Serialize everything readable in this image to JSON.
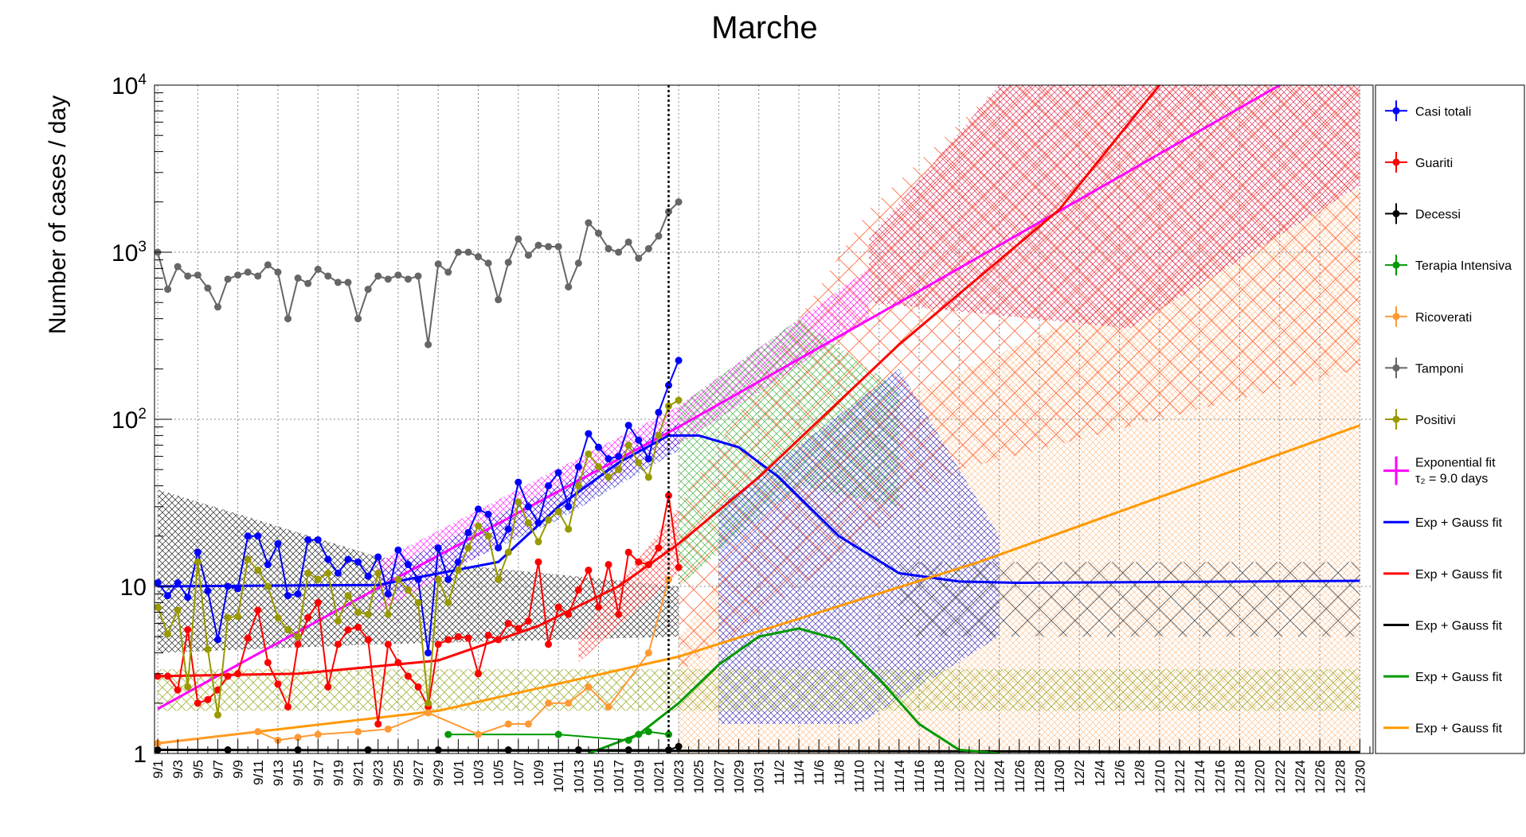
{
  "chart_data": {
    "type": "line",
    "title": "Marche",
    "ylabel": "Number of cases / day",
    "xlabel": "",
    "y_scale": "log",
    "ylim": [
      1,
      10000
    ],
    "y_ticks": [
      {
        "value": 1,
        "base": "1",
        "exp": ""
      },
      {
        "value": 10,
        "base": "10",
        "exp": ""
      },
      {
        "value": 100,
        "base": "10",
        "exp": "2"
      },
      {
        "value": 1000,
        "base": "10",
        "exp": "3"
      },
      {
        "value": 10000,
        "base": "10",
        "exp": "4"
      }
    ],
    "x_tick_labels": [
      "9/1",
      "9/3",
      "9/5",
      "9/7",
      "9/9",
      "9/11",
      "9/13",
      "9/15",
      "9/17",
      "9/19",
      "9/21",
      "9/23",
      "9/25",
      "9/27",
      "9/29",
      "10/1",
      "10/3",
      "10/5",
      "10/7",
      "10/9",
      "10/11",
      "10/13",
      "10/15",
      "10/17",
      "10/19",
      "10/21",
      "10/23",
      "10/25",
      "10/27",
      "10/29",
      "10/31",
      "11/2",
      "11/4",
      "11/6",
      "11/8",
      "11/10",
      "11/12",
      "11/14",
      "11/16",
      "11/18",
      "11/20",
      "11/22",
      "11/24",
      "11/26",
      "11/28",
      "11/30",
      "12/2",
      "12/4",
      "12/6",
      "12/8",
      "12/10",
      "12/12",
      "12/14",
      "12/16",
      "12/18",
      "12/20",
      "12/22",
      "12/24",
      "12/26",
      "12/28",
      "12/30"
    ],
    "grid": true,
    "legend_position": "right",
    "vertical_marker_label": "10/22",
    "series": [
      {
        "name": "Casi totali",
        "kind": "points",
        "color": "#0000ff",
        "x": [
          "9/1",
          "9/2",
          "9/3",
          "9/4",
          "9/5",
          "9/6",
          "9/7",
          "9/8",
          "9/9",
          "9/10",
          "9/11",
          "9/12",
          "9/13",
          "9/14",
          "9/15",
          "9/16",
          "9/17",
          "9/18",
          "9/19",
          "9/20",
          "9/21",
          "9/22",
          "9/23",
          "9/24",
          "9/25",
          "9/26",
          "9/27",
          "9/28",
          "9/29",
          "9/30",
          "10/1",
          "10/2",
          "10/3",
          "10/4",
          "10/5",
          "10/6",
          "10/7",
          "10/8",
          "10/9",
          "10/10",
          "10/11",
          "10/12",
          "10/13",
          "10/14",
          "10/15",
          "10/16",
          "10/17",
          "10/18",
          "10/19",
          "10/20",
          "10/21",
          "10/22",
          "10/23"
        ],
        "y": [
          10.5,
          8.8,
          10.5,
          8.6,
          16,
          9.4,
          4.8,
          10,
          9.7,
          20,
          20,
          13.5,
          18,
          8.8,
          9,
          19,
          19,
          14.5,
          12,
          14.5,
          14,
          11.5,
          15,
          9,
          16.5,
          13.5,
          11,
          4,
          17,
          11,
          14,
          21,
          29,
          27,
          17,
          22,
          42,
          30,
          24,
          40,
          48,
          30,
          52,
          82,
          68,
          58,
          60,
          92,
          75,
          58,
          110,
          160,
          225
        ]
      },
      {
        "name": "Guariti",
        "kind": "points",
        "color": "#ff0000",
        "x": [
          "9/1",
          "9/2",
          "9/3",
          "9/4",
          "9/5",
          "9/6",
          "9/7",
          "9/8",
          "9/9",
          "9/10",
          "9/11",
          "9/12",
          "9/13",
          "9/14",
          "9/15",
          "9/16",
          "9/17",
          "9/18",
          "9/19",
          "9/20",
          "9/21",
          "9/22",
          "9/23",
          "9/24",
          "9/25",
          "9/26",
          "9/27",
          "9/28",
          "9/29",
          "9/30",
          "10/1",
          "10/2",
          "10/3",
          "10/4",
          "10/5",
          "10/6",
          "10/7",
          "10/8",
          "10/9",
          "10/10",
          "10/11",
          "10/12",
          "10/13",
          "10/14",
          "10/15",
          "10/16",
          "10/17",
          "10/18",
          "10/19",
          "10/20",
          "10/21",
          "10/22",
          "10/23"
        ],
        "y": [
          2.9,
          2.9,
          2.4,
          5.5,
          2,
          2.1,
          2.4,
          2.9,
          3,
          4.9,
          7.2,
          3.5,
          2.6,
          1.9,
          4.5,
          6.5,
          8,
          2.5,
          4.5,
          5.5,
          5.7,
          4.8,
          1.5,
          4.5,
          3.5,
          2.9,
          2.5,
          1.9,
          4.5,
          4.8,
          5,
          4.9,
          3,
          5.1,
          4.8,
          6,
          5.6,
          6.2,
          14,
          4.5,
          7.5,
          6.8,
          9.5,
          12.5,
          7.5,
          13.5,
          6.8,
          16,
          14,
          13.5,
          17,
          35,
          13
        ]
      },
      {
        "name": "Decessi",
        "kind": "points",
        "color": "#000000",
        "x": [
          "9/1",
          "9/8",
          "9/15",
          "9/22",
          "9/29",
          "10/6",
          "10/13",
          "10/18",
          "10/22",
          "10/23"
        ],
        "y": [
          1.05,
          1.05,
          1.05,
          1.05,
          1.05,
          1.05,
          1.05,
          1.05,
          1.05,
          1.1
        ]
      },
      {
        "name": "Terapia Intensiva",
        "kind": "points",
        "color": "#009900",
        "x": [
          "9/30",
          "10/11",
          "10/18",
          "10/19",
          "10/20",
          "10/22"
        ],
        "y": [
          1.3,
          1.3,
          1.2,
          1.3,
          1.35,
          1.3
        ]
      },
      {
        "name": "Ricoverati",
        "kind": "points",
        "color": "#ff9933",
        "x": [
          "9/1",
          "9/11",
          "9/13",
          "9/15",
          "9/17",
          "9/21",
          "9/24",
          "9/28",
          "10/3",
          "10/6",
          "10/8",
          "10/10",
          "10/12",
          "10/14",
          "10/16",
          "10/20",
          "10/22"
        ],
        "y": [
          1.15,
          1.35,
          1.2,
          1.25,
          1.3,
          1.35,
          1.4,
          1.75,
          1.3,
          1.5,
          1.5,
          2,
          2,
          2.5,
          1.9,
          4,
          11
        ]
      },
      {
        "name": "Tamponi",
        "kind": "points",
        "color": "#666666",
        "x": [
          "9/1",
          "9/2",
          "9/3",
          "9/4",
          "9/5",
          "9/6",
          "9/7",
          "9/8",
          "9/9",
          "9/10",
          "9/11",
          "9/12",
          "9/13",
          "9/14",
          "9/15",
          "9/16",
          "9/17",
          "9/18",
          "9/19",
          "9/20",
          "9/21",
          "9/22",
          "9/23",
          "9/24",
          "9/25",
          "9/26",
          "9/27",
          "9/28",
          "9/29",
          "9/30",
          "10/1",
          "10/2",
          "10/3",
          "10/4",
          "10/5",
          "10/6",
          "10/7",
          "10/8",
          "10/9",
          "10/10",
          "10/11",
          "10/12",
          "10/13",
          "10/14",
          "10/15",
          "10/16",
          "10/17",
          "10/18",
          "10/19",
          "10/20",
          "10/21",
          "10/22",
          "10/23"
        ],
        "y": [
          1000,
          600,
          820,
          720,
          730,
          610,
          470,
          690,
          730,
          760,
          720,
          840,
          760,
          400,
          700,
          650,
          790,
          720,
          660,
          660,
          400,
          600,
          720,
          690,
          730,
          690,
          720,
          280,
          850,
          760,
          1000,
          1000,
          940,
          860,
          520,
          870,
          1200,
          960,
          1100,
          1080,
          1080,
          620,
          860,
          1500,
          1300,
          1050,
          1000,
          1150,
          920,
          1050,
          1250,
          1750,
          2000
        ]
      },
      {
        "name": "Positivi",
        "kind": "points",
        "color": "#999900",
        "x": [
          "9/1",
          "9/2",
          "9/3",
          "9/4",
          "9/5",
          "9/6",
          "9/7",
          "9/8",
          "9/9",
          "9/10",
          "9/11",
          "9/12",
          "9/13",
          "9/14",
          "9/15",
          "9/16",
          "9/17",
          "9/18",
          "9/19",
          "9/20",
          "9/21",
          "9/22",
          "9/23",
          "9/24",
          "9/25",
          "9/26",
          "9/27",
          "9/28",
          "9/29",
          "9/30",
          "10/1",
          "10/2",
          "10/3",
          "10/4",
          "10/5",
          "10/6",
          "10/7",
          "10/8",
          "10/9",
          "10/10",
          "10/11",
          "10/12",
          "10/13",
          "10/14",
          "10/15",
          "10/16",
          "10/17",
          "10/18",
          "10/19",
          "10/20",
          "10/21",
          "10/22",
          "10/23"
        ],
        "y": [
          7.5,
          5.2,
          7.2,
          2.5,
          14,
          4.2,
          1.7,
          6.5,
          6.6,
          14.5,
          12.5,
          10,
          6.5,
          5.5,
          5,
          12,
          11,
          12,
          6.2,
          8.8,
          7,
          6.8,
          12,
          6.8,
          11,
          9.5,
          8,
          2,
          11,
          8,
          12.5,
          17,
          23,
          20,
          11,
          16,
          32,
          24,
          18.5,
          25,
          28,
          22,
          40,
          62,
          52,
          45,
          50,
          70,
          55,
          45,
          80,
          120,
          130
        ]
      }
    ],
    "fits": [
      {
        "name": "Exponential fit",
        "label_sub": "τ₂ = 9.0 days",
        "color": "#ff00ff",
        "x": [
          "9/1",
          "9/23",
          "10/23",
          "11/14",
          "12/22"
        ],
        "y": [
          1.85,
          9.8,
          90,
          500,
          10000
        ]
      },
      {
        "name": "Exp + Gauss fit",
        "color": "#0000ff",
        "x": [
          "9/1",
          "9/23",
          "10/5",
          "10/11",
          "10/17",
          "10/22",
          "10/25",
          "10/29",
          "11/2",
          "11/8",
          "11/14",
          "11/20",
          "11/26",
          "12/30"
        ],
        "y": [
          10,
          10.2,
          14,
          30,
          55,
          80,
          80,
          68,
          45,
          20,
          12,
          10.7,
          10.5,
          10.8
        ]
      },
      {
        "name": "Exp + Gauss fit",
        "color": "#ff0000",
        "x": [
          "9/1",
          "9/15",
          "9/29",
          "10/9",
          "10/17",
          "10/23",
          "10/31",
          "11/14",
          "11/30",
          "12/10"
        ],
        "y": [
          2.9,
          3,
          3.6,
          5.8,
          10,
          18,
          45,
          280,
          1800,
          10000
        ]
      },
      {
        "name": "Exp + Gauss fit",
        "color": "#000000",
        "x": [
          "9/1",
          "12/30"
        ],
        "y": [
          1.05,
          1.02
        ]
      },
      {
        "name": "Exp + Gauss fit",
        "color": "#009900",
        "x": [
          "10/14",
          "10/19",
          "10/23",
          "10/27",
          "10/31",
          "11/4",
          "11/8",
          "11/12",
          "11/16",
          "11/20",
          "11/24"
        ],
        "y": [
          1,
          1.3,
          2,
          3.4,
          5,
          5.6,
          4.8,
          2.8,
          1.5,
          1.05,
          1
        ]
      },
      {
        "name": "Exp + Gauss fit",
        "color": "#ff9900",
        "x": [
          "9/1",
          "9/29",
          "10/23",
          "11/22",
          "12/30"
        ],
        "y": [
          1.15,
          1.8,
          3.8,
          14,
          92
        ]
      }
    ]
  },
  "legend": [
    {
      "label": "Casi totali",
      "color": "#0000ff",
      "style": "point"
    },
    {
      "label": "Guariti",
      "color": "#ff0000",
      "style": "point"
    },
    {
      "label": "Decessi",
      "color": "#000000",
      "style": "point"
    },
    {
      "label": "Terapia Intensiva",
      "color": "#009900",
      "style": "point"
    },
    {
      "label": "Ricoverati",
      "color": "#ff9933",
      "style": "point"
    },
    {
      "label": "Tamponi",
      "color": "#666666",
      "style": "point"
    },
    {
      "label": "Positivi",
      "color": "#999900",
      "style": "point"
    },
    {
      "label": "Exponential fit",
      "label2": "τ₂ = 9.0 days",
      "color": "#ff00ff",
      "style": "cross"
    },
    {
      "label": "Exp + Gauss fit",
      "color": "#0000ff",
      "style": "line"
    },
    {
      "label": "Exp + Gauss fit",
      "color": "#ff0000",
      "style": "line"
    },
    {
      "label": "Exp + Gauss fit",
      "color": "#000000",
      "style": "line"
    },
    {
      "label": "Exp + Gauss fit",
      "color": "#009900",
      "style": "line"
    },
    {
      "label": "Exp + Gauss fit",
      "color": "#ff9900",
      "style": "line"
    }
  ]
}
